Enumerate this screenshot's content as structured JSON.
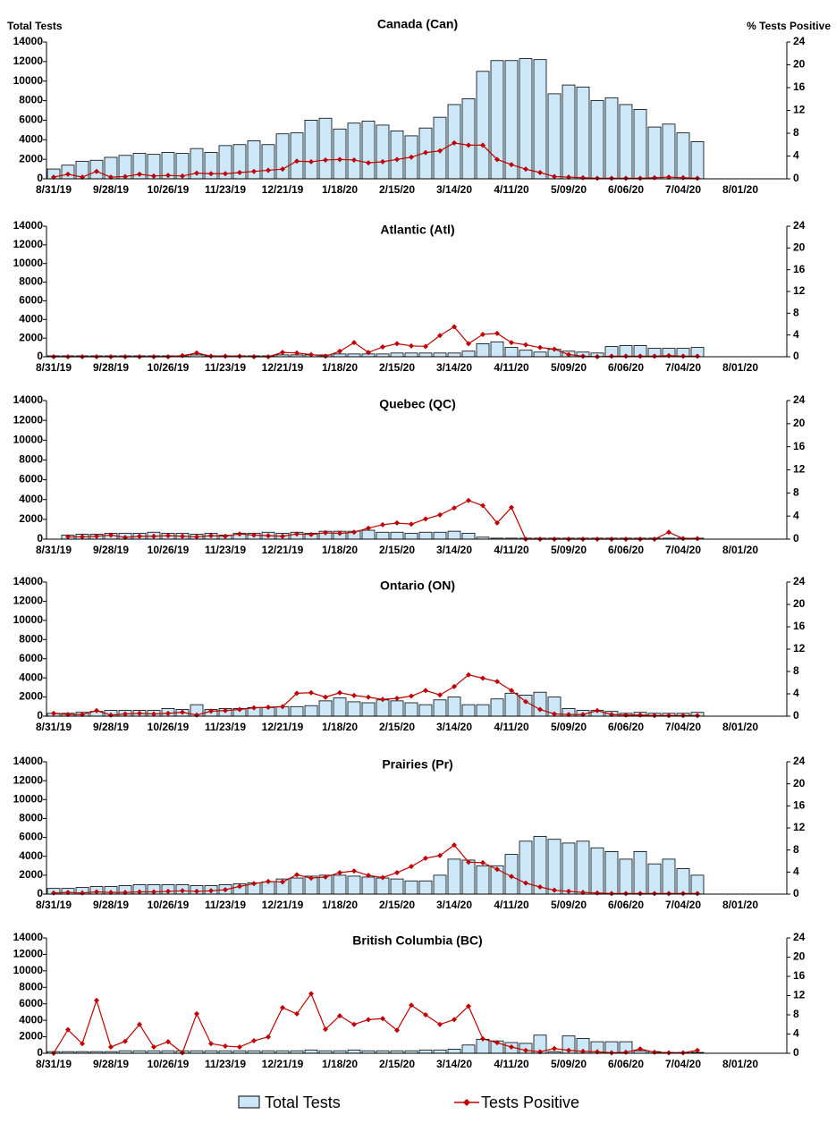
{
  "chart_data": [
    {
      "type": "combo",
      "title": "Canada (Can)",
      "ylabel": "Total Tests",
      "y2label": "% Tests Positive",
      "categories": [
        "8/31/19",
        null,
        null,
        null,
        "9/28/19",
        null,
        null,
        null,
        "10/26/19",
        null,
        null,
        null,
        "11/23/19",
        null,
        null,
        null,
        "12/21/19",
        null,
        null,
        null,
        "1/18/20",
        null,
        null,
        null,
        "2/15/20",
        null,
        null,
        null,
        "3/14/20",
        null,
        null,
        null,
        "4/11/20",
        null,
        null,
        null,
        "5/09/20",
        null,
        null,
        null,
        "6/06/20",
        null,
        null,
        null,
        "7/04/20",
        null,
        null,
        null,
        "8/01/20"
      ],
      "series": [
        {
          "name": "Total Tests",
          "color": "#cce8f8",
          "values": [
            1000,
            1400,
            1800,
            1900,
            2200,
            2400,
            2600,
            2500,
            2700,
            2600,
            3100,
            2700,
            3400,
            3500,
            3900,
            3500,
            4600,
            4700,
            6000,
            6200,
            5100,
            5700,
            5900,
            5500,
            4900,
            4400,
            5200,
            6300,
            7600,
            8200,
            11000,
            12100,
            12100,
            12300,
            12200,
            8700,
            9600,
            9400,
            8000,
            8300,
            7600,
            7100,
            5300,
            5600,
            4700,
            3800,
            null,
            null,
            null
          ]
        },
        {
          "name": "Tests Positive",
          "color": "#c00000",
          "axis": "y2",
          "values": [
            0.3,
            0.8,
            0.3,
            1.3,
            0.3,
            0.4,
            0.8,
            0.5,
            0.6,
            0.5,
            1.0,
            0.9,
            0.9,
            1.1,
            1.3,
            1.5,
            1.7,
            3.1,
            3.0,
            3.3,
            3.4,
            3.3,
            2.8,
            3.0,
            3.4,
            3.8,
            4.6,
            4.9,
            6.3,
            5.9,
            5.9,
            3.4,
            2.5,
            1.7,
            1.1,
            0.4,
            0.3,
            0.2,
            0.1,
            0.1,
            0.1,
            0.1,
            0.2,
            0.3,
            0.2,
            0.1,
            null,
            null,
            null
          ]
        }
      ],
      "ylim": [
        0,
        14000
      ],
      "yticks": [
        0,
        2000,
        4000,
        6000,
        8000,
        10000,
        12000,
        14000
      ],
      "y2lim": [
        0,
        24
      ],
      "y2ticks": [
        0,
        4,
        8,
        12,
        16,
        20,
        24
      ]
    },
    {
      "type": "combo",
      "title": "Atlantic (Atl)",
      "categories": [
        "8/31/19",
        null,
        null,
        null,
        "9/28/19",
        null,
        null,
        null,
        "10/26/19",
        null,
        null,
        null,
        "11/23/19",
        null,
        null,
        null,
        "12/21/19",
        null,
        null,
        null,
        "1/18/20",
        null,
        null,
        null,
        "2/15/20",
        null,
        null,
        null,
        "3/14/20",
        null,
        null,
        null,
        "4/11/20",
        null,
        null,
        null,
        "5/09/20",
        null,
        null,
        null,
        "6/06/20",
        null,
        null,
        null,
        "7/04/20",
        null,
        null,
        null,
        "8/01/20"
      ],
      "series": [
        {
          "color": "#cce8f8",
          "values": [
            100,
            100,
            100,
            100,
            100,
            100,
            100,
            100,
            100,
            100,
            200,
            100,
            100,
            100,
            100,
            100,
            200,
            200,
            200,
            200,
            300,
            300,
            300,
            300,
            400,
            400,
            400,
            400,
            400,
            600,
            1400,
            1600,
            1000,
            700,
            500,
            800,
            600,
            500,
            400,
            1100,
            1200,
            1200,
            900,
            900,
            900,
            1000,
            null,
            null,
            null
          ]
        },
        {
          "color": "#c00000",
          "axis": "y2",
          "values": [
            0,
            0,
            0,
            0,
            0,
            0,
            0,
            0,
            0,
            0.2,
            0.7,
            0.1,
            0.1,
            0.1,
            0,
            0,
            0.8,
            0.7,
            0.4,
            0.1,
            1.0,
            2.6,
            0.8,
            1.8,
            2.4,
            2.0,
            1.9,
            3.9,
            5.5,
            2.4,
            4.1,
            4.3,
            2.6,
            2.2,
            1.7,
            1.4,
            0.4,
            0.1,
            0,
            0.1,
            0.1,
            0.1,
            0.1,
            0.2,
            0.1,
            0.1,
            null,
            null,
            null
          ]
        }
      ],
      "ylim": [
        0,
        14000
      ],
      "yticks": [
        0,
        2000,
        4000,
        6000,
        8000,
        10000,
        12000,
        14000
      ],
      "y2lim": [
        0,
        24
      ],
      "y2ticks": [
        0,
        4,
        8,
        12,
        16,
        20,
        24
      ]
    },
    {
      "type": "combo",
      "title": "Quebec (QC)",
      "categories": [
        "8/31/19",
        null,
        null,
        null,
        "9/28/19",
        null,
        null,
        null,
        "10/26/19",
        null,
        null,
        null,
        "11/23/19",
        null,
        null,
        null,
        "12/21/19",
        null,
        null,
        null,
        "1/18/20",
        null,
        null,
        null,
        "2/15/20",
        null,
        null,
        null,
        "3/14/20",
        null,
        null,
        null,
        "4/11/20",
        null,
        null,
        null,
        "5/09/20",
        null,
        null,
        null,
        "6/06/20",
        null,
        null,
        null,
        "7/04/20",
        null,
        null,
        null,
        "8/01/20"
      ],
      "series": [
        {
          "color": "#cce8f8",
          "values": [
            null,
            400,
            500,
            500,
            600,
            600,
            600,
            700,
            600,
            600,
            500,
            600,
            400,
            600,
            600,
            700,
            600,
            700,
            600,
            800,
            800,
            800,
            900,
            700,
            700,
            600,
            700,
            700,
            800,
            600,
            200,
            100,
            100,
            100,
            100,
            100,
            100,
            100,
            100,
            100,
            100,
            100,
            100,
            100,
            100,
            100,
            null,
            null,
            null
          ]
        },
        {
          "color": "#c00000",
          "axis": "y2",
          "values": [
            null,
            0.4,
            0.4,
            0.5,
            0.7,
            0.3,
            0.5,
            0.5,
            0.6,
            0.5,
            0.4,
            0.6,
            0.5,
            0.9,
            0.7,
            0.6,
            0.5,
            0.9,
            0.8,
            1.1,
            1.0,
            1.2,
            1.9,
            2.5,
            2.8,
            2.6,
            3.5,
            4.2,
            5.4,
            6.7,
            5.8,
            2.8,
            5.5,
            0,
            0,
            0,
            0,
            0,
            0,
            0,
            0,
            0,
            0,
            1.2,
            0.1,
            0.1,
            null,
            null,
            null
          ]
        }
      ],
      "ylim": [
        0,
        14000
      ],
      "yticks": [
        0,
        2000,
        4000,
        6000,
        8000,
        10000,
        12000,
        14000
      ],
      "y2lim": [
        0,
        24
      ],
      "y2ticks": [
        0,
        4,
        8,
        12,
        16,
        20,
        24
      ]
    },
    {
      "type": "combo",
      "title": "Ontario (ON)",
      "categories": [
        "8/31/19",
        null,
        null,
        null,
        "9/28/19",
        null,
        null,
        null,
        "10/26/19",
        null,
        null,
        null,
        "11/23/19",
        null,
        null,
        null,
        "12/21/19",
        null,
        null,
        null,
        "1/18/20",
        null,
        null,
        null,
        "2/15/20",
        null,
        null,
        null,
        "3/14/20",
        null,
        null,
        null,
        "4/11/20",
        null,
        null,
        null,
        "5/09/20",
        null,
        null,
        null,
        "6/06/20",
        null,
        null,
        null,
        "7/04/20",
        null,
        null,
        null,
        "8/01/20"
      ],
      "series": [
        {
          "color": "#cce8f8",
          "values": [
            300,
            300,
            400,
            500,
            600,
            600,
            600,
            600,
            800,
            700,
            1200,
            700,
            800,
            800,
            900,
            900,
            1000,
            1000,
            1100,
            1600,
            1900,
            1500,
            1400,
            1700,
            1600,
            1400,
            1200,
            1700,
            2000,
            1200,
            1200,
            1800,
            2400,
            2200,
            2500,
            2000,
            800,
            600,
            600,
            500,
            300,
            400,
            300,
            300,
            300,
            400,
            null,
            null,
            null
          ]
        },
        {
          "color": "#c00000",
          "axis": "y2",
          "values": [
            0.5,
            0.3,
            0.3,
            1.0,
            0.2,
            0.4,
            0.5,
            0.4,
            0.5,
            0.7,
            0.2,
            0.9,
            1.0,
            1.2,
            1.5,
            1.6,
            1.7,
            4.1,
            4.2,
            3.4,
            4.2,
            3.7,
            3.4,
            3.0,
            3.2,
            3.6,
            4.6,
            3.8,
            5.3,
            7.4,
            6.8,
            6.2,
            4.6,
            2.6,
            1.2,
            0.4,
            0.3,
            0.3,
            1.0,
            0.3,
            0.2,
            0.2,
            0.1,
            0.1,
            0.1,
            0.1,
            null,
            null,
            null
          ]
        }
      ],
      "ylim": [
        0,
        14000
      ],
      "yticks": [
        0,
        2000,
        4000,
        6000,
        8000,
        10000,
        12000,
        14000
      ],
      "y2lim": [
        0,
        24
      ],
      "y2ticks": [
        0,
        4,
        8,
        12,
        16,
        20,
        24
      ]
    },
    {
      "type": "combo",
      "title": "Prairies (Pr)",
      "categories": [
        "8/31/19",
        null,
        null,
        null,
        "9/28/19",
        null,
        null,
        null,
        "10/26/19",
        null,
        null,
        null,
        "11/23/19",
        null,
        null,
        null,
        "12/21/19",
        null,
        null,
        null,
        "1/18/20",
        null,
        null,
        null,
        "2/15/20",
        null,
        null,
        null,
        "3/14/20",
        null,
        null,
        null,
        "4/11/20",
        null,
        null,
        null,
        "5/09/20",
        null,
        null,
        null,
        "6/06/20",
        null,
        null,
        null,
        "7/04/20",
        null,
        null,
        null,
        "8/01/20"
      ],
      "series": [
        {
          "color": "#cce8f8",
          "values": [
            600,
            600,
            700,
            800,
            800,
            900,
            1000,
            1000,
            1000,
            1000,
            900,
            900,
            1000,
            1100,
            1200,
            1300,
            1600,
            1700,
            1900,
            2000,
            2000,
            1900,
            1800,
            1700,
            1600,
            1400,
            1400,
            2000,
            3700,
            3600,
            3000,
            3000,
            4200,
            5600,
            6100,
            5800,
            5400,
            5600,
            4900,
            4500,
            3700,
            4500,
            3200,
            3700,
            2700,
            2000,
            null,
            null,
            null
          ]
        },
        {
          "color": "#c00000",
          "axis": "y2",
          "values": [
            0.2,
            0.3,
            0.2,
            0.4,
            0.3,
            0.3,
            0.4,
            0.4,
            0.5,
            0.6,
            0.5,
            0.6,
            0.8,
            1.4,
            1.9,
            2.3,
            2.2,
            3.5,
            2.9,
            3.1,
            3.9,
            4.2,
            3.4,
            3.0,
            3.9,
            5.0,
            6.5,
            7.0,
            8.9,
            5.8,
            5.7,
            4.5,
            3.2,
            2.0,
            1.3,
            0.7,
            0.5,
            0.3,
            0.2,
            0.1,
            0.1,
            0.1,
            0.1,
            0.1,
            0.1,
            0.1,
            null,
            null,
            null
          ]
        }
      ],
      "ylim": [
        0,
        14000
      ],
      "yticks": [
        0,
        2000,
        4000,
        6000,
        8000,
        10000,
        12000,
        14000
      ],
      "y2lim": [
        0,
        24
      ],
      "y2ticks": [
        0,
        4,
        8,
        12,
        16,
        20,
        24
      ]
    },
    {
      "type": "combo",
      "title": "British Columbia (BC)",
      "categories": [
        "8/31/19",
        null,
        null,
        null,
        "9/28/19",
        null,
        null,
        null,
        "10/26/19",
        null,
        null,
        null,
        "11/23/19",
        null,
        null,
        null,
        "12/21/19",
        null,
        null,
        null,
        "1/18/20",
        null,
        null,
        null,
        "2/15/20",
        null,
        null,
        null,
        "3/14/20",
        null,
        null,
        null,
        "4/11/20",
        null,
        null,
        null,
        "5/09/20",
        null,
        null,
        null,
        "6/06/20",
        null,
        null,
        null,
        "7/04/20",
        null,
        null,
        null,
        "8/01/20"
      ],
      "series": [
        {
          "color": "#cce8f8",
          "values": [
            200,
            200,
            200,
            200,
            200,
            300,
            300,
            300,
            300,
            300,
            300,
            300,
            300,
            300,
            300,
            300,
            300,
            300,
            400,
            300,
            300,
            400,
            300,
            300,
            300,
            300,
            400,
            400,
            500,
            1000,
            1700,
            1500,
            1300,
            1200,
            2200,
            200,
            2100,
            1800,
            1400,
            1400,
            1400,
            300,
            200,
            100,
            100,
            100,
            null,
            null,
            null
          ]
        },
        {
          "color": "#c00000",
          "axis": "y2",
          "values": [
            0,
            4.9,
            2.0,
            11.0,
            1.3,
            2.5,
            6.0,
            1.3,
            2.4,
            0.1,
            8.2,
            2.0,
            1.5,
            1.3,
            2.6,
            3.4,
            9.5,
            8.2,
            12.4,
            5.0,
            7.8,
            6.0,
            7.0,
            7.2,
            4.8,
            10.0,
            8.0,
            6.0,
            7.0,
            9.8,
            3.0,
            2.2,
            1.3,
            0.6,
            0.3,
            1.0,
            0.6,
            0.4,
            0.3,
            0.1,
            0.2,
            0.9,
            0.2,
            0.1,
            0.1,
            0.6,
            null,
            null,
            null
          ]
        }
      ],
      "ylim": [
        0,
        14000
      ],
      "yticks": [
        0,
        2000,
        4000,
        6000,
        8000,
        10000,
        12000,
        14000
      ],
      "y2lim": [
        0,
        24
      ],
      "y2ticks": [
        0,
        4,
        8,
        12,
        16,
        20,
        24
      ]
    }
  ]
}
